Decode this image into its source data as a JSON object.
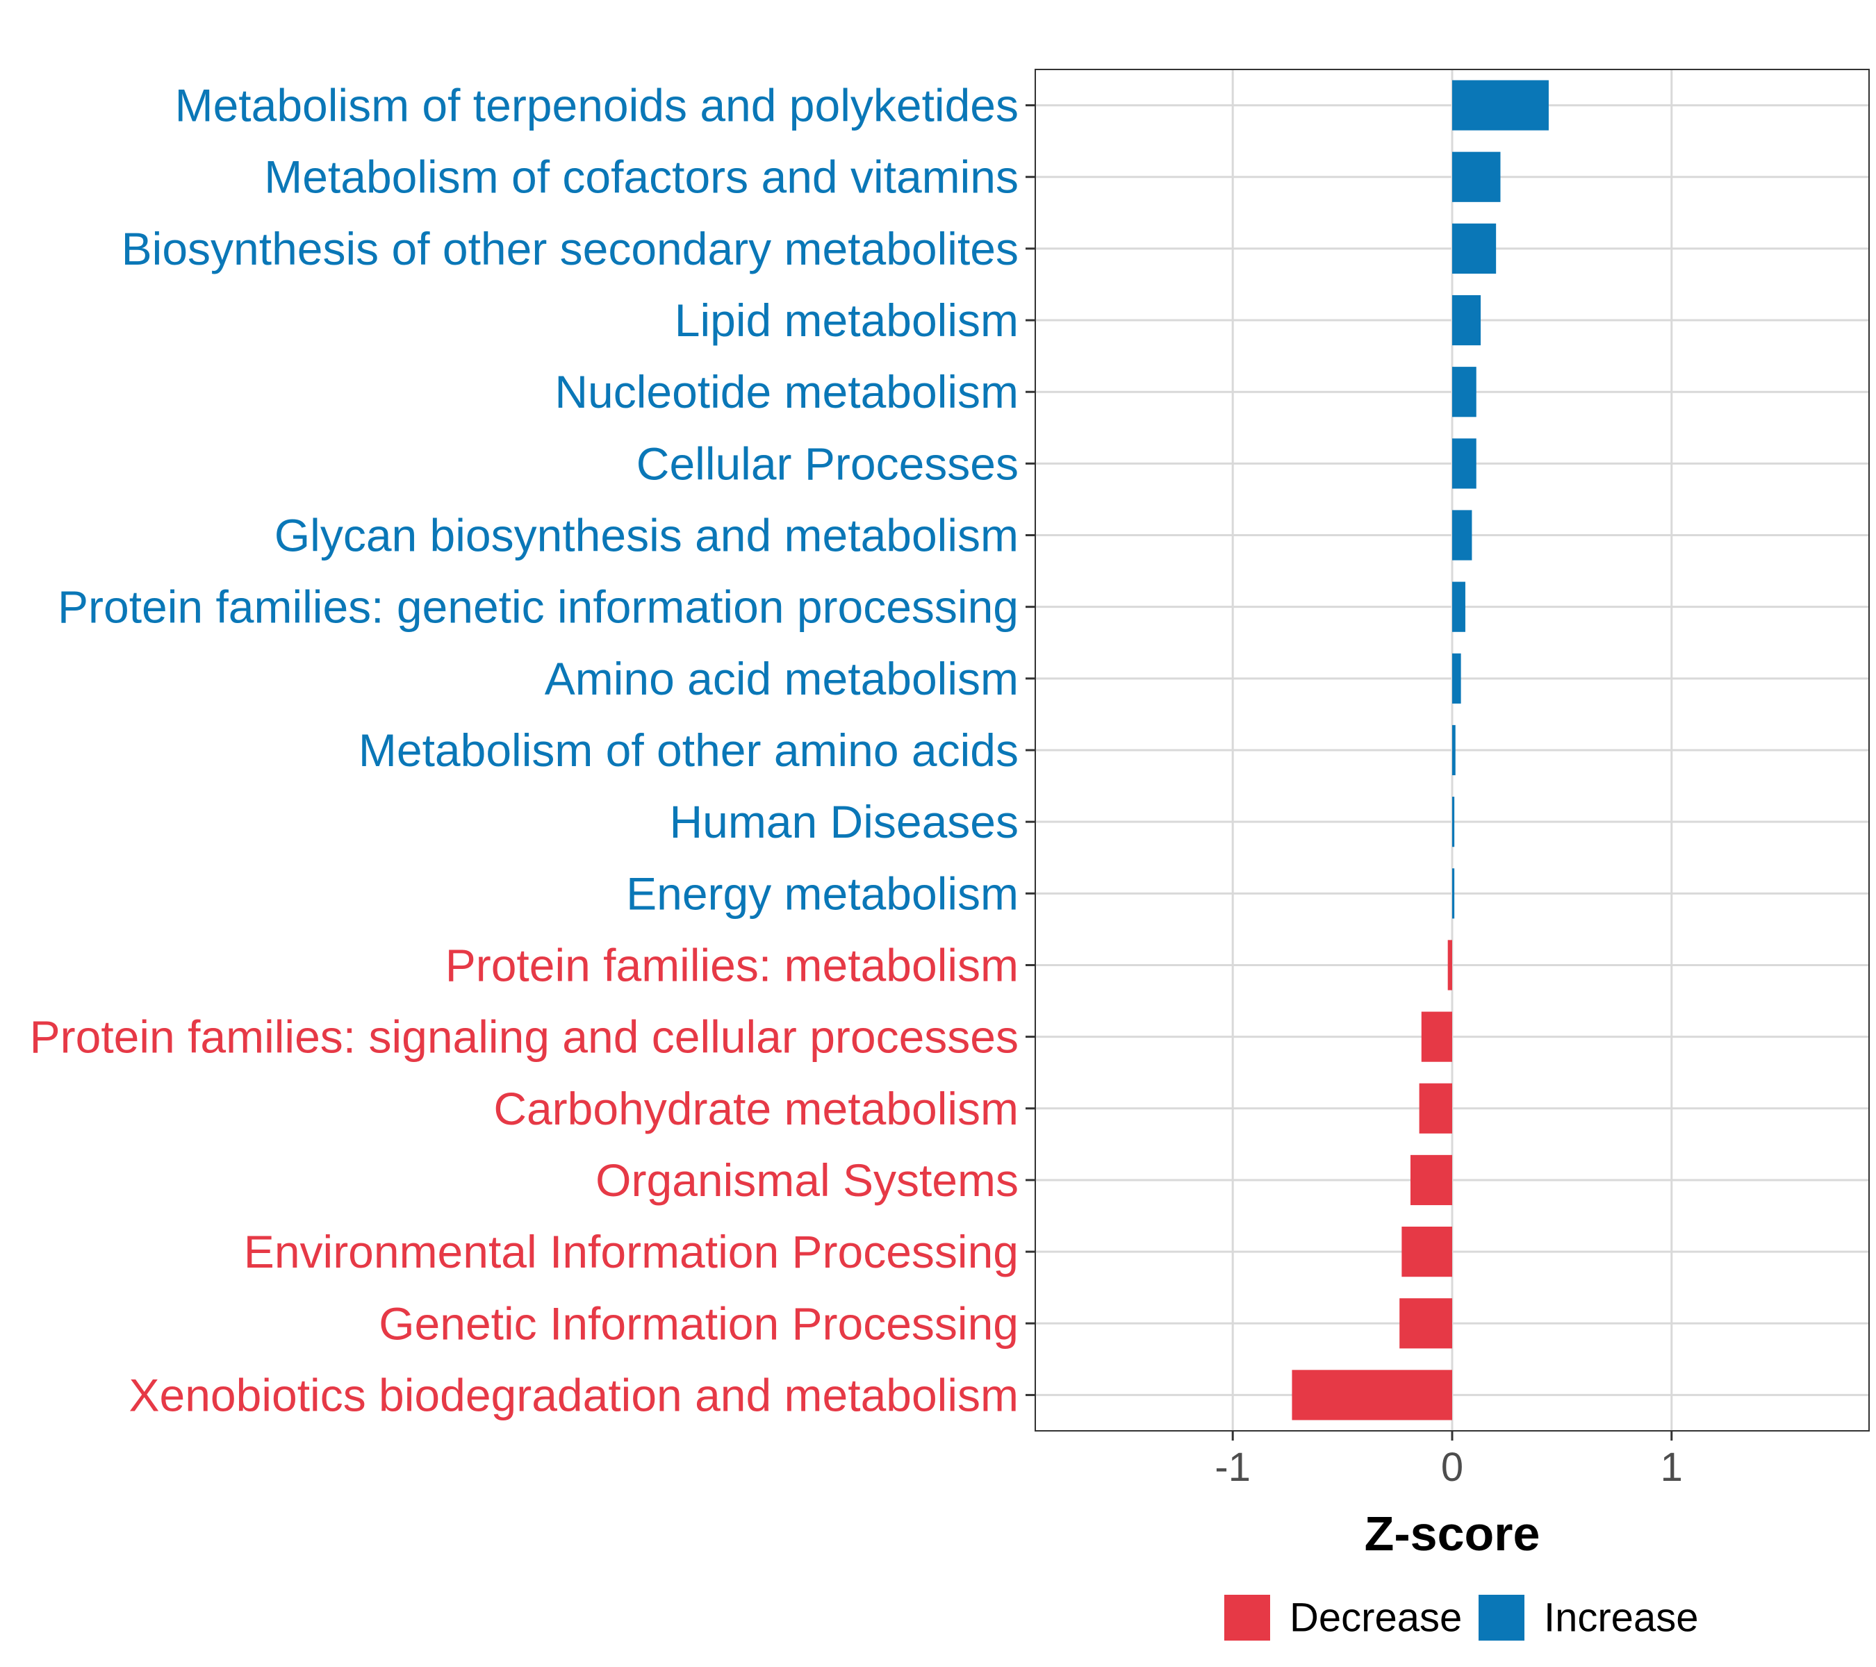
{
  "chart_data": {
    "type": "bar",
    "orientation": "horizontal",
    "title": "",
    "xlabel": "Z-score",
    "ylabel": "",
    "xlim": [
      -1.9,
      1.9
    ],
    "x_ticks": [
      -1,
      0,
      1
    ],
    "x_tick_labels": [
      "-1",
      "0",
      "1"
    ],
    "grid": true,
    "legend_position": "bottom",
    "colors": {
      "Decrease": "#E63946",
      "Increase": "#0A77B7"
    },
    "legend": [
      {
        "name": "Decrease",
        "color": "#E63946"
      },
      {
        "name": "Increase",
        "color": "#0A77B7"
      }
    ],
    "categories": [
      "Metabolism of terpenoids and polyketides",
      "Metabolism of cofactors and vitamins",
      "Biosynthesis of other secondary metabolites",
      "Lipid metabolism",
      "Nucleotide metabolism",
      "Cellular Processes",
      "Glycan biosynthesis and metabolism",
      "Protein families: genetic information processing",
      "Amino acid metabolism",
      "Metabolism of other amino acids",
      "Human Diseases",
      "Energy metabolism",
      "Protein families: metabolism",
      "Protein families: signaling and cellular processes",
      "Carbohydrate metabolism",
      "Organismal Systems",
      "Environmental Information Processing",
      "Genetic Information Processing",
      "Xenobiotics biodegradation and metabolism"
    ],
    "values": [
      0.44,
      0.22,
      0.2,
      0.13,
      0.11,
      0.11,
      0.09,
      0.06,
      0.04,
      0.015,
      0.01,
      0.01,
      -0.02,
      -0.14,
      -0.15,
      -0.19,
      -0.23,
      -0.24,
      -0.73
    ],
    "groups": [
      "Increase",
      "Increase",
      "Increase",
      "Increase",
      "Increase",
      "Increase",
      "Increase",
      "Increase",
      "Increase",
      "Increase",
      "Increase",
      "Increase",
      "Decrease",
      "Decrease",
      "Decrease",
      "Decrease",
      "Decrease",
      "Decrease",
      "Decrease"
    ]
  }
}
